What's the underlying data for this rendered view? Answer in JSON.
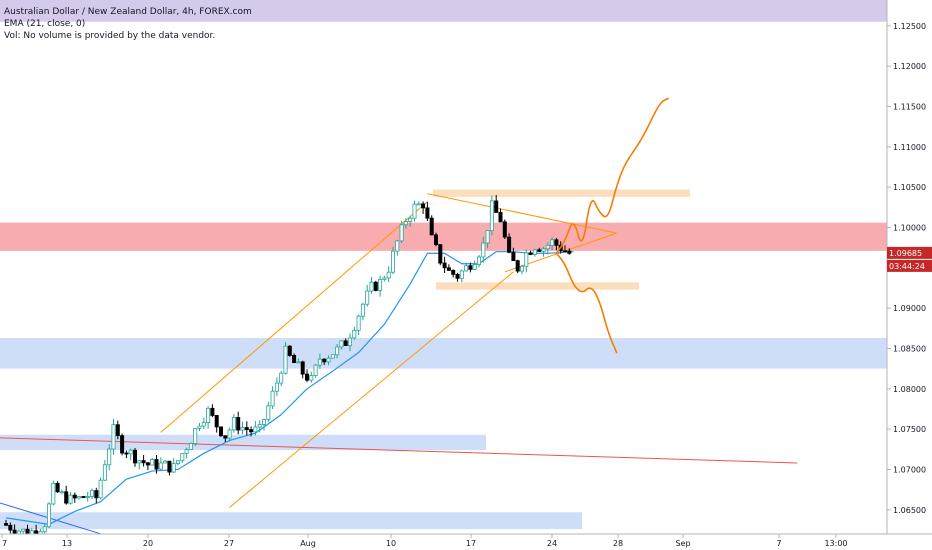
{
  "chart_data": {
    "type": "candlestick",
    "title": "Australian Dollar / New Zealand Dollar, 4h, FOREX.com",
    "indicator_label": "EMA (21, close, 0)",
    "volume_label": "Vol: No volume is provided by the data vendor.",
    "ylim": [
      1.062,
      1.1282
    ],
    "y_ticks": [
      "1.12500",
      "1.12000",
      "1.11500",
      "1.11000",
      "1.10500",
      "1.10000",
      "1.09500",
      "1.09000",
      "1.08500",
      "1.08000",
      "1.07500",
      "1.07000",
      "1.06500"
    ],
    "x_ticks": [
      "7",
      "13",
      "20",
      "27",
      "Aug",
      "10",
      "17",
      "24",
      "28",
      "Sep",
      "7",
      "13:00"
    ],
    "last_price": "1.09685",
    "countdown": "03:44:24",
    "colors": {
      "up": "#26a69a",
      "down": "#000000",
      "ema": "#2196f3",
      "zone_purple": "#d1c4e9",
      "zone_red": "#f8a3a7",
      "zone_blue": "#c9daf8",
      "zone_orange": "#fcd9b6",
      "channel": "#ff9800",
      "projection": "#f57c00",
      "trendline_red": "#ef5350",
      "trendline_blue": "#2962ff",
      "price_tag": "#c62828"
    },
    "zones": [
      {
        "name": "purple",
        "y1": 1.1255,
        "y2": 1.1282
      },
      {
        "name": "red",
        "y1": 1.0971,
        "y2": 1.1006
      },
      {
        "name": "blue-upper",
        "y1": 1.0825,
        "y2": 1.0863
      },
      {
        "name": "blue-middle",
        "y1": 1.0724,
        "y2": 1.0743
      },
      {
        "name": "blue-lower",
        "y1": 1.0626,
        "y2": 1.0647
      },
      {
        "name": "orange-top",
        "y1": 1.1038,
        "y2": 1.1047
      },
      {
        "name": "orange-bottom",
        "y1": 1.0923,
        "y2": 1.0932
      }
    ],
    "price_path": [
      [
        0,
        1.0633
      ],
      [
        1,
        1.0629
      ],
      [
        2,
        1.0625
      ],
      [
        3,
        1.0622
      ],
      [
        4,
        1.0624
      ],
      [
        5,
        1.0634
      ],
      [
        6,
        1.0675
      ],
      [
        7,
        1.0668
      ],
      [
        8,
        1.0662
      ],
      [
        9,
        1.0664
      ],
      [
        10,
        1.0668
      ],
      [
        11,
        1.0665
      ],
      [
        12,
        1.071
      ],
      [
        13,
        1.0748
      ],
      [
        14,
        1.0728
      ],
      [
        15,
        1.072
      ],
      [
        16,
        1.0712
      ],
      [
        17,
        1.0706
      ],
      [
        18,
        1.0706
      ],
      [
        19,
        1.0705
      ],
      [
        20,
        1.0702
      ],
      [
        21,
        1.072
      ],
      [
        22,
        1.0738
      ],
      [
        23,
        1.076
      ],
      [
        24,
        1.0772
      ],
      [
        25,
        1.0755
      ],
      [
        26,
        1.0742
      ],
      [
        27,
        1.0758
      ],
      [
        28,
        1.0752
      ],
      [
        29,
        1.0748
      ],
      [
        30,
        1.0748
      ],
      [
        31,
        1.0778
      ],
      [
        32,
        1.0808
      ],
      [
        33,
        1.0845
      ],
      [
        34,
        1.0832
      ],
      [
        35,
        1.082
      ],
      [
        36,
        1.081
      ],
      [
        37,
        1.0838
      ],
      [
        38,
        1.0842
      ],
      [
        39,
        1.0848
      ],
      [
        40,
        1.0858
      ],
      [
        41,
        1.088
      ],
      [
        42,
        1.0905
      ],
      [
        43,
        1.0925
      ],
      [
        44,
        1.0932
      ],
      [
        45,
        1.095
      ],
      [
        46,
        1.0982
      ],
      [
        47,
        1.101
      ],
      [
        48,
        1.1025
      ],
      [
        49,
        1.103
      ],
      [
        50,
        1.0985
      ],
      [
        51,
        1.096
      ],
      [
        52,
        1.0945
      ],
      [
        53,
        1.094
      ],
      [
        54,
        1.095
      ],
      [
        55,
        1.0962
      ],
      [
        56,
        1.0978
      ],
      [
        57,
        1.1025
      ],
      [
        58,
        1.101
      ],
      [
        59,
        1.0962
      ],
      [
        60,
        1.095
      ],
      [
        61,
        1.0968
      ],
      [
        62,
        1.0978
      ],
      [
        63,
        1.0975
      ],
      [
        64,
        1.0982
      ],
      [
        65,
        1.0975
      ],
      [
        66,
        1.0968
      ]
    ],
    "ema_path": [
      [
        0,
        1.064
      ],
      [
        5,
        1.0632
      ],
      [
        8,
        1.0648
      ],
      [
        11,
        1.066
      ],
      [
        14,
        1.0688
      ],
      [
        17,
        1.0698
      ],
      [
        20,
        1.07
      ],
      [
        23,
        1.072
      ],
      [
        26,
        1.0736
      ],
      [
        29,
        1.0745
      ],
      [
        32,
        1.0768
      ],
      [
        35,
        1.08
      ],
      [
        38,
        1.0822
      ],
      [
        41,
        1.0845
      ],
      [
        44,
        1.088
      ],
      [
        47,
        1.093
      ],
      [
        49,
        1.0968
      ],
      [
        51,
        1.0968
      ],
      [
        53,
        1.0955
      ],
      [
        55,
        1.0955
      ],
      [
        57,
        1.097
      ],
      [
        59,
        1.097
      ],
      [
        61,
        1.0968
      ],
      [
        63,
        1.0968
      ],
      [
        66,
        1.097
      ]
    ],
    "lines": [
      {
        "name": "channel-upper",
        "from": [
          18,
          1.0746
        ],
        "to": [
          49,
          1.1032
        ]
      },
      {
        "name": "channel-lower",
        "from": [
          26,
          1.0653
        ],
        "to": [
          59,
          1.0945
        ]
      },
      {
        "name": "triangle-top",
        "from": [
          49,
          1.1042
        ],
        "to": [
          71,
          1.0993
        ]
      },
      {
        "name": "triangle-bottom",
        "from": [
          58,
          1.0945
        ],
        "to": [
          71,
          1.0993
        ]
      },
      {
        "name": "red-trendline",
        "from": [
          -3,
          1.074
        ],
        "to": [
          92,
          1.0708
        ]
      },
      {
        "name": "blue-trendline",
        "from": [
          -3,
          1.0666
        ],
        "to": [
          12,
          1.0617
        ]
      }
    ],
    "projections": [
      {
        "name": "bullish-path",
        "points": [
          [
            64,
            1.0968
          ],
          [
            65,
            1.0983
          ],
          [
            66,
            1.1013
          ],
          [
            67,
            1.097
          ],
          [
            68,
            1.1042
          ],
          [
            69,
            1.1018
          ],
          [
            70,
            1.101
          ],
          [
            71,
            1.1052
          ],
          [
            72,
            1.108
          ],
          [
            74,
            1.111
          ],
          [
            76,
            1.1155
          ],
          [
            77,
            1.116
          ]
        ]
      },
      {
        "name": "bearish-path",
        "points": [
          [
            64,
            1.0968
          ],
          [
            65,
            1.0955
          ],
          [
            66,
            1.0928
          ],
          [
            67,
            1.0918
          ],
          [
            68,
            1.0928
          ],
          [
            69,
            1.091
          ],
          [
            70,
            1.087
          ],
          [
            71,
            1.0845
          ]
        ]
      }
    ],
    "grid": true,
    "x_axis": "time (4h bars)",
    "y_axis": "price"
  }
}
